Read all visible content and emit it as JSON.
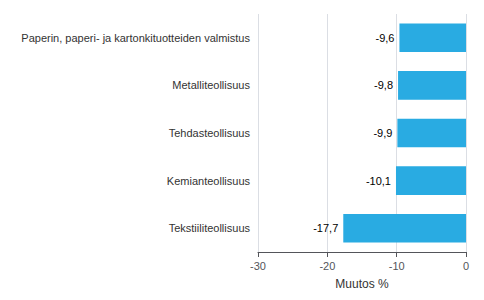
{
  "chart_data": {
    "type": "bar",
    "orientation": "horizontal",
    "categories": [
      "Tekstiiliteollisuus",
      "Kemianteollisuus",
      "Tehdasteollisuus",
      "Metalliteollisuus",
      "Paperin, paperi- ja kartonkituotteiden valmistus"
    ],
    "values": [
      -17.7,
      -10.1,
      -9.9,
      -9.8,
      -9.6
    ],
    "value_labels": [
      "-17,7",
      "-10,1",
      "-9,9",
      "-9,8",
      "-9,6"
    ],
    "data_labels": true,
    "color": "#29abe2",
    "xlabel": "Muutos %",
    "xlim": [
      -30,
      0
    ],
    "xticks": [
      -30,
      -20,
      -10,
      0
    ],
    "grid": true
  }
}
